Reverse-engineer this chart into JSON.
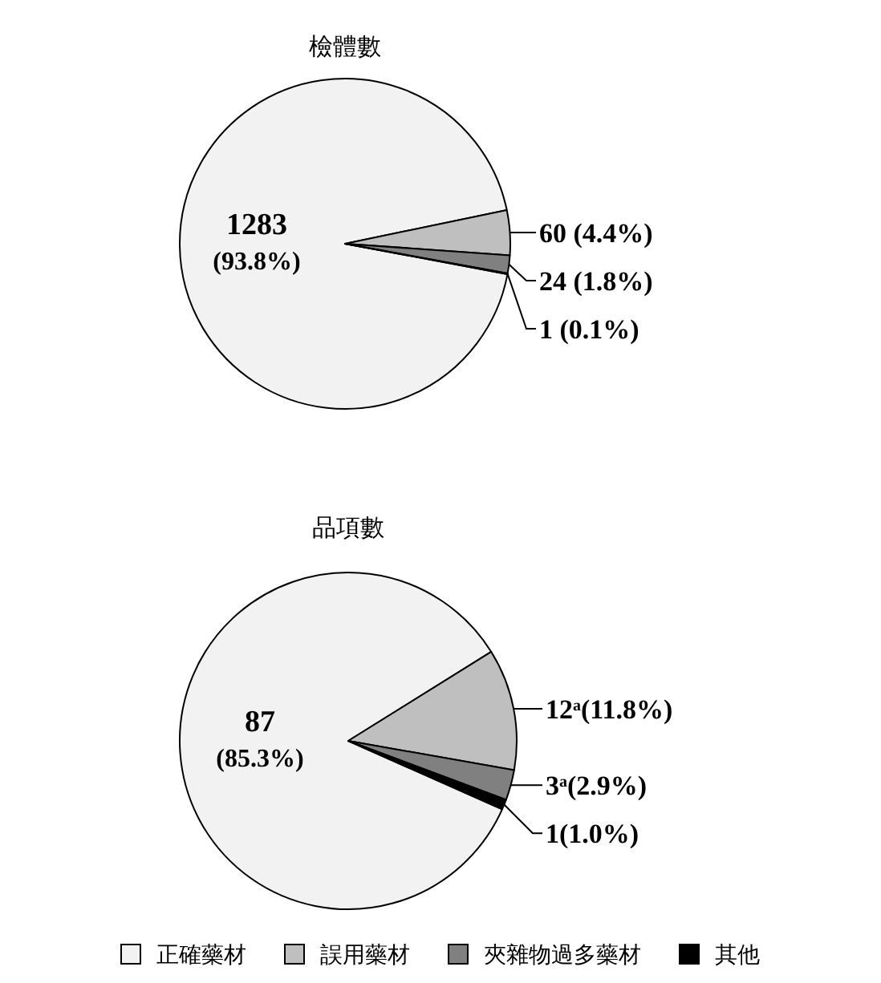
{
  "chart_data": [
    {
      "type": "pie",
      "title": "檢體數",
      "categories": [
        null,
        null,
        null,
        null
      ],
      "values": [
        1283,
        60,
        24,
        1
      ],
      "colors": [
        "#f2f2f2",
        "#bfbfbf",
        "#808080",
        "#000000"
      ],
      "value_labels": [
        "1283\n(93.8%)",
        "60 (4.4%)",
        "24 (1.8%)",
        "1 (0.1%)"
      ],
      "legend": false
    },
    {
      "type": "pie",
      "title": "品項數",
      "categories": [
        "正確藥材",
        "誤用藥材",
        "夾雜物過多藥材",
        "其他"
      ],
      "values": [
        87,
        12,
        3,
        1
      ],
      "colors": [
        "#f2f2f2",
        "#bfbfbf",
        "#808080",
        "#000000"
      ],
      "value_labels": [
        "87\n(85.3%)",
        "12$^{a}$(11.8%)",
        "3$^{a}$(2.9%)",
        "1(1.0%)"
      ],
      "legend": "bottom"
    }
  ]
}
